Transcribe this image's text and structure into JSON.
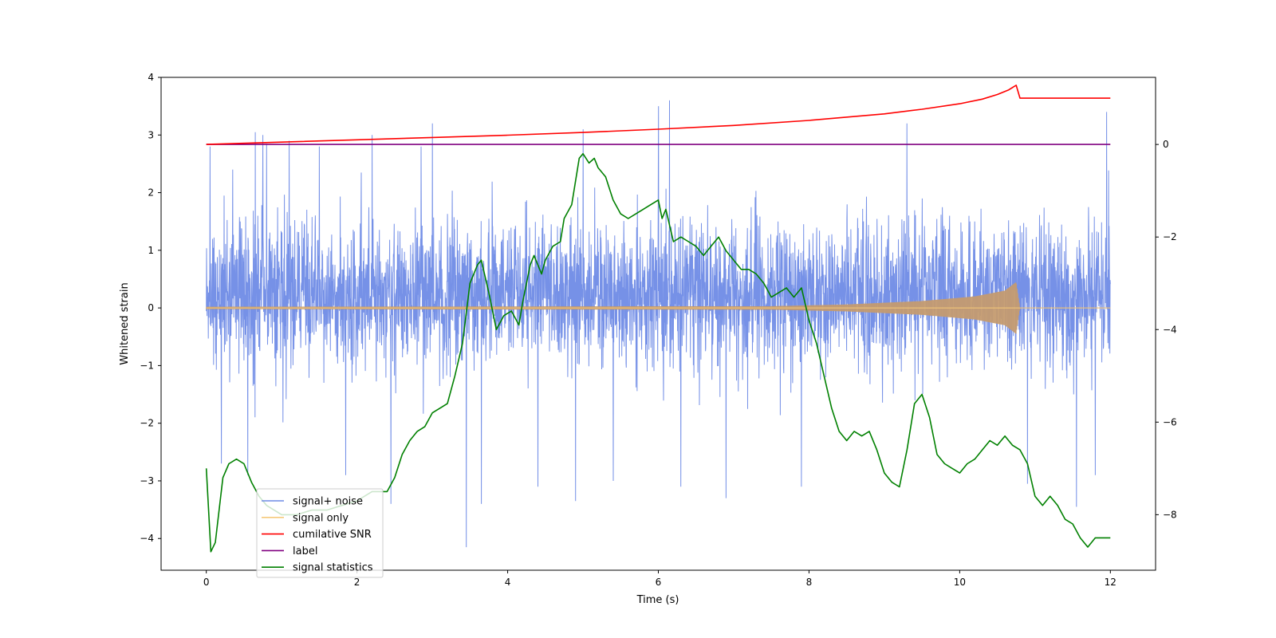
{
  "chart_data": {
    "type": "line",
    "title": "",
    "xlabel": "Time (s)",
    "ylabel": "Whitened strain",
    "xlim": [
      -0.6,
      12.6
    ],
    "ylim_left": [
      -4.55,
      4.0
    ],
    "ylim_right": [
      -9.2,
      1.45
    ],
    "x_ticks": [
      0,
      2,
      4,
      6,
      8,
      10,
      12
    ],
    "y_left_ticks": [
      -4,
      -3,
      -2,
      -1,
      0,
      1,
      2,
      3,
      4
    ],
    "y_right_ticks": [
      -8,
      -6,
      -4,
      -2,
      0
    ],
    "legend_location": "lower-left",
    "legend": [
      {
        "label": "signal+ noise",
        "color": "#6f8be6"
      },
      {
        "label": "signal only",
        "color": "#f5c97a"
      },
      {
        "label": "cumilative SNR",
        "color": "#ff0000"
      },
      {
        "label": "label",
        "color": "#800080"
      },
      {
        "label": "signal statistics",
        "color": "#008000"
      }
    ],
    "series": [
      {
        "name": "signal+ noise",
        "axis": "left",
        "color": "#6f8be6",
        "description": "white noise, approx. range -1.6 to 2.3 dense band, spikes to 3.6 and -4.15",
        "x_range": [
          0,
          12
        ],
        "spikes": [
          {
            "x": 0.05,
            "y": 2.8
          },
          {
            "x": 0.35,
            "y": 2.4
          },
          {
            "x": 0.65,
            "y": 3.05
          },
          {
            "x": 0.75,
            "y": 3.0
          },
          {
            "x": 0.8,
            "y": 2.85
          },
          {
            "x": 1.1,
            "y": 2.9
          },
          {
            "x": 1.5,
            "y": 2.8
          },
          {
            "x": 2.2,
            "y": 3.0
          },
          {
            "x": 2.85,
            "y": 2.8
          },
          {
            "x": 3.0,
            "y": 3.2
          },
          {
            "x": 3.45,
            "y": 3.1
          },
          {
            "x": 5.0,
            "y": 3.1
          },
          {
            "x": 6.0,
            "y": 3.5
          },
          {
            "x": 6.15,
            "y": 3.6
          },
          {
            "x": 9.3,
            "y": 3.2
          },
          {
            "x": 11.95,
            "y": 3.4
          },
          {
            "x": 0.2,
            "y": -2.7
          },
          {
            "x": 0.55,
            "y": -2.9
          },
          {
            "x": 1.85,
            "y": -2.9
          },
          {
            "x": 2.45,
            "y": -3.4
          },
          {
            "x": 3.45,
            "y": -4.15
          },
          {
            "x": 3.65,
            "y": -3.4
          },
          {
            "x": 4.4,
            "y": -3.1
          },
          {
            "x": 4.9,
            "y": -3.35
          },
          {
            "x": 5.4,
            "y": -3.0
          },
          {
            "x": 6.3,
            "y": -3.1
          },
          {
            "x": 6.9,
            "y": -3.3
          },
          {
            "x": 7.9,
            "y": -3.1
          },
          {
            "x": 10.9,
            "y": -3.05
          },
          {
            "x": 11.55,
            "y": -3.45
          },
          {
            "x": 11.8,
            "y": -2.9
          }
        ]
      },
      {
        "name": "signal only",
        "axis": "left",
        "color": "#f5c97a",
        "description": "inspiral chirp, amplitude grows until merger near t=10.8 s",
        "merger_time": 10.8,
        "envelope": [
          {
            "x": 0.0,
            "amp": 0.02
          },
          {
            "x": 7.5,
            "amp": 0.03
          },
          {
            "x": 8.5,
            "amp": 0.06
          },
          {
            "x": 9.5,
            "amp": 0.12
          },
          {
            "x": 10.2,
            "amp": 0.2
          },
          {
            "x": 10.6,
            "amp": 0.3
          },
          {
            "x": 10.75,
            "amp": 0.45
          },
          {
            "x": 10.8,
            "amp": 0.0
          },
          {
            "x": 12.0,
            "amp": 0.0
          }
        ]
      },
      {
        "name": "cumilative SNR",
        "axis": "right",
        "color": "#ff0000",
        "x": [
          0,
          1,
          2,
          3,
          4,
          5,
          6,
          7,
          8,
          9,
          9.5,
          10,
          10.3,
          10.5,
          10.65,
          10.75,
          10.8,
          11,
          12
        ],
        "values": [
          0.0,
          0.05,
          0.1,
          0.15,
          0.2,
          0.26,
          0.33,
          0.41,
          0.52,
          0.66,
          0.76,
          0.88,
          0.98,
          1.08,
          1.18,
          1.28,
          1.0,
          1.0,
          1.0
        ]
      },
      {
        "name": "label",
        "axis": "right",
        "color": "#800080",
        "x": [
          0,
          12
        ],
        "values": [
          0,
          0
        ]
      },
      {
        "name": "signal statistics",
        "axis": "right",
        "color": "#008000",
        "x": [
          0.0,
          0.06,
          0.12,
          0.22,
          0.3,
          0.4,
          0.5,
          0.6,
          0.7,
          0.8,
          0.9,
          1.0,
          1.1,
          1.2,
          1.4,
          1.6,
          1.8,
          2.0,
          2.2,
          2.4,
          2.5,
          2.6,
          2.7,
          2.8,
          2.9,
          3.0,
          3.1,
          3.2,
          3.3,
          3.4,
          3.5,
          3.6,
          3.65,
          3.75,
          3.85,
          3.95,
          4.05,
          4.15,
          4.2,
          4.3,
          4.35,
          4.45,
          4.5,
          4.6,
          4.7,
          4.75,
          4.85,
          4.95,
          5.0,
          5.08,
          5.15,
          5.2,
          5.3,
          5.4,
          5.5,
          5.6,
          5.7,
          5.8,
          5.9,
          6.0,
          6.05,
          6.1,
          6.2,
          6.3,
          6.4,
          6.5,
          6.6,
          6.7,
          6.8,
          6.9,
          7.0,
          7.1,
          7.2,
          7.3,
          7.4,
          7.5,
          7.6,
          7.7,
          7.8,
          7.9,
          8.0,
          8.1,
          8.2,
          8.3,
          8.4,
          8.5,
          8.6,
          8.7,
          8.8,
          8.9,
          9.0,
          9.1,
          9.2,
          9.3,
          9.4,
          9.5,
          9.6,
          9.7,
          9.8,
          9.9,
          10.0,
          10.1,
          10.2,
          10.3,
          10.4,
          10.5,
          10.6,
          10.7,
          10.8,
          10.9,
          11.0,
          11.1,
          11.2,
          11.3,
          11.4,
          11.5,
          11.6,
          11.7,
          11.8,
          11.9,
          12.0
        ],
        "values": [
          -7.0,
          -8.8,
          -8.6,
          -7.2,
          -6.9,
          -6.8,
          -6.9,
          -7.3,
          -7.6,
          -7.8,
          -7.9,
          -8.0,
          -8.0,
          -8.0,
          -7.9,
          -7.9,
          -7.8,
          -7.7,
          -7.5,
          -7.5,
          -7.2,
          -6.7,
          -6.4,
          -6.2,
          -6.1,
          -5.8,
          -5.7,
          -5.6,
          -5.0,
          -4.3,
          -3.0,
          -2.6,
          -2.5,
          -3.2,
          -4.0,
          -3.7,
          -3.6,
          -3.9,
          -3.4,
          -2.6,
          -2.4,
          -2.8,
          -2.5,
          -2.2,
          -2.1,
          -1.6,
          -1.3,
          -0.3,
          -0.2,
          -0.4,
          -0.3,
          -0.5,
          -0.7,
          -1.2,
          -1.5,
          -1.6,
          -1.5,
          -1.4,
          -1.3,
          -1.2,
          -1.6,
          -1.4,
          -2.1,
          -2.0,
          -2.1,
          -2.2,
          -2.4,
          -2.2,
          -2.0,
          -2.3,
          -2.5,
          -2.7,
          -2.7,
          -2.8,
          -3.0,
          -3.3,
          -3.2,
          -3.1,
          -3.3,
          -3.1,
          -3.8,
          -4.3,
          -5.0,
          -5.7,
          -6.2,
          -6.4,
          -6.2,
          -6.3,
          -6.2,
          -6.6,
          -7.1,
          -7.3,
          -7.4,
          -6.6,
          -5.6,
          -5.4,
          -5.9,
          -6.7,
          -6.9,
          -7.0,
          -7.1,
          -6.9,
          -6.8,
          -6.6,
          -6.4,
          -6.5,
          -6.3,
          -6.5,
          -6.6,
          -6.9,
          -7.6,
          -7.8,
          -7.6,
          -7.8,
          -8.1,
          -8.2,
          -8.5,
          -8.7,
          -8.5,
          -8.5,
          -8.5
        ]
      }
    ]
  }
}
